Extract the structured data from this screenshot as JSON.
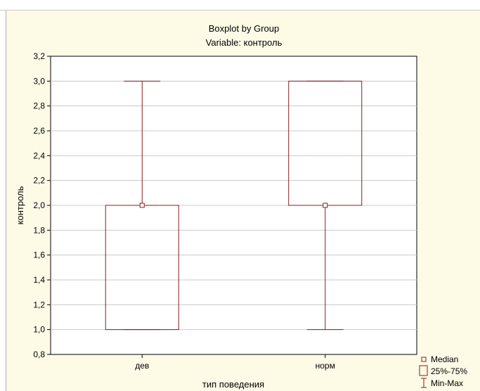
{
  "chart_data": {
    "type": "boxplot",
    "title": "Boxplot by Group",
    "subtitle": "Variable: контроль",
    "xlabel": "тип поведения",
    "ylabel": "контроль",
    "ylim": [
      0.8,
      3.2
    ],
    "yticks": [
      "0,8",
      "1,0",
      "1,2",
      "1,4",
      "1,6",
      "1,8",
      "2,0",
      "2,2",
      "2,4",
      "2,6",
      "2,8",
      "3,0",
      "3,2"
    ],
    "ytick_values": [
      0.8,
      1.0,
      1.2,
      1.4,
      1.6,
      1.8,
      2.0,
      2.2,
      2.4,
      2.6,
      2.8,
      3.0,
      3.2
    ],
    "categories": [
      "дев",
      "норм"
    ],
    "groups": [
      {
        "name": "дев",
        "min": 1.0,
        "q1": 1.0,
        "median": 2.0,
        "q3": 2.0,
        "max": 3.0
      },
      {
        "name": "норм",
        "min": 1.0,
        "q1": 2.0,
        "median": 2.0,
        "q3": 3.0,
        "max": 3.0
      }
    ],
    "grid": true,
    "legend_position": "bottom-right",
    "legend": [
      "Median",
      "25%-75%",
      "Min-Max"
    ],
    "colors": {
      "box": "#8b1a1a",
      "background": "#fdfae6",
      "grid": "#c8c8c8"
    }
  }
}
